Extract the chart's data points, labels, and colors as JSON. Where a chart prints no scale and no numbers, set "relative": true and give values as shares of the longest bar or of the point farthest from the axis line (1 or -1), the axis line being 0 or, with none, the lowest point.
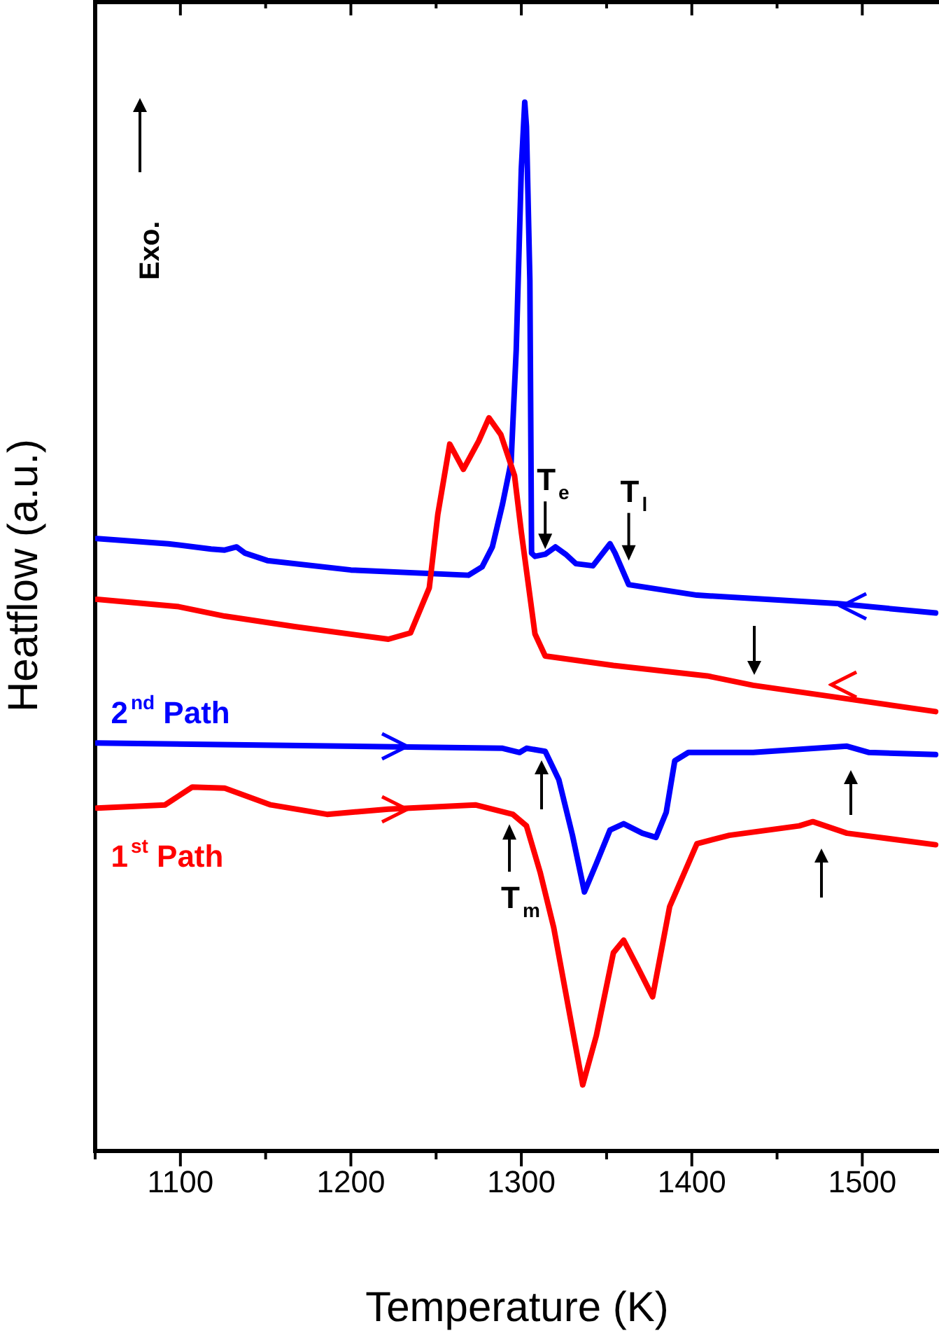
{
  "chart_data": {
    "type": "line",
    "relative": true,
    "xlabel": "Temperature (K)",
    "ylabel": "Heatflow (a.u.)",
    "xlim": [
      1050,
      1545
    ],
    "xticks": [
      {
        "value": 1050,
        "label": null
      },
      1100,
      {
        "value": 1150,
        "label": null
      },
      1200,
      {
        "value": 1250,
        "label": null
      },
      1300,
      {
        "value": 1350,
        "label": null
      },
      1400,
      {
        "value": 1450,
        "label": null
      },
      1500
    ],
    "grid": false,
    "legend": false,
    "marker": "none",
    "line_style": "solid",
    "series": [
      {
        "name": "1$^{st}$ Path",
        "color": "#ff0000",
        "x": [
          1051,
          1091,
          1107,
          1126,
          1153,
          1186,
          1222,
          1273,
          1295,
          1303,
          1311,
          1319,
          1336,
          1344,
          1354,
          1360,
          1368,
          1377,
          1387,
          1403,
          1422,
          1463,
          1471,
          1491,
          1543
        ],
        "values": [
          0.327,
          0.33,
          0.347,
          0.346,
          0.33,
          0.321,
          0.326,
          0.33,
          0.321,
          0.31,
          0.266,
          0.213,
          0.063,
          0.11,
          0.189,
          0.201,
          0.176,
          0.147,
          0.233,
          0.293,
          0.301,
          0.31,
          0.314,
          0.303,
          0.292
        ]
      },
      {
        "name": "2$^{nd}$ Path",
        "color": "#0000ff",
        "x": [
          1051,
          1289,
          1299,
          1303,
          1314,
          1322,
          1330,
          1337,
          1344,
          1352,
          1360,
          1371,
          1379,
          1385,
          1390,
          1398,
          1436,
          1491,
          1504,
          1543
        ],
        "values": [
          0.389,
          0.384,
          0.38,
          0.384,
          0.381,
          0.354,
          0.301,
          0.247,
          0.274,
          0.306,
          0.312,
          0.303,
          0.299,
          0.323,
          0.372,
          0.38,
          0.38,
          0.386,
          0.38,
          0.378
        ]
      },
      {
        "color": "#ff0000",
        "x": [
          1051,
          1099,
          1126,
          1167,
          1222,
          1235,
          1246,
          1251,
          1258,
          1266,
          1275,
          1281,
          1288,
          1296,
          1300,
          1308,
          1314,
          1354,
          1409,
          1436,
          1479,
          1543
        ],
        "values": [
          0.526,
          0.519,
          0.51,
          0.5,
          0.488,
          0.494,
          0.537,
          0.607,
          0.674,
          0.65,
          0.677,
          0.699,
          0.683,
          0.644,
          0.59,
          0.493,
          0.472,
          0.463,
          0.453,
          0.444,
          0.434,
          0.419
        ]
      },
      {
        "color": "#0000ff",
        "x": [
          1051,
          1093,
          1118,
          1126,
          1133,
          1138,
          1151,
          1200,
          1269,
          1277,
          1283,
          1289,
          1294,
          1297,
          1300,
          1302,
          1303,
          1305,
          1306,
          1308,
          1314,
          1320,
          1326,
          1332,
          1342,
          1352,
          1355,
          1363,
          1403,
          1485,
          1543
        ],
        "values": [
          0.584,
          0.579,
          0.574,
          0.573,
          0.576,
          0.57,
          0.563,
          0.554,
          0.549,
          0.557,
          0.576,
          0.617,
          0.657,
          0.764,
          0.937,
          1,
          0.977,
          0.83,
          0.57,
          0.567,
          0.569,
          0.576,
          0.569,
          0.56,
          0.558,
          0.579,
          0.57,
          0.54,
          0.53,
          0.522,
          0.513
        ]
      }
    ],
    "annotations": [
      "Exo.",
      {
        "text": "T$_{e}$",
        "x": 1314,
        "y": 0.574
      },
      {
        "text": "T$_{l}$",
        "x": 1363,
        "y": 0.563
      },
      {
        "text": "T$_{m}$",
        "x": 1293,
        "y": 0.325
      }
    ]
  }
}
